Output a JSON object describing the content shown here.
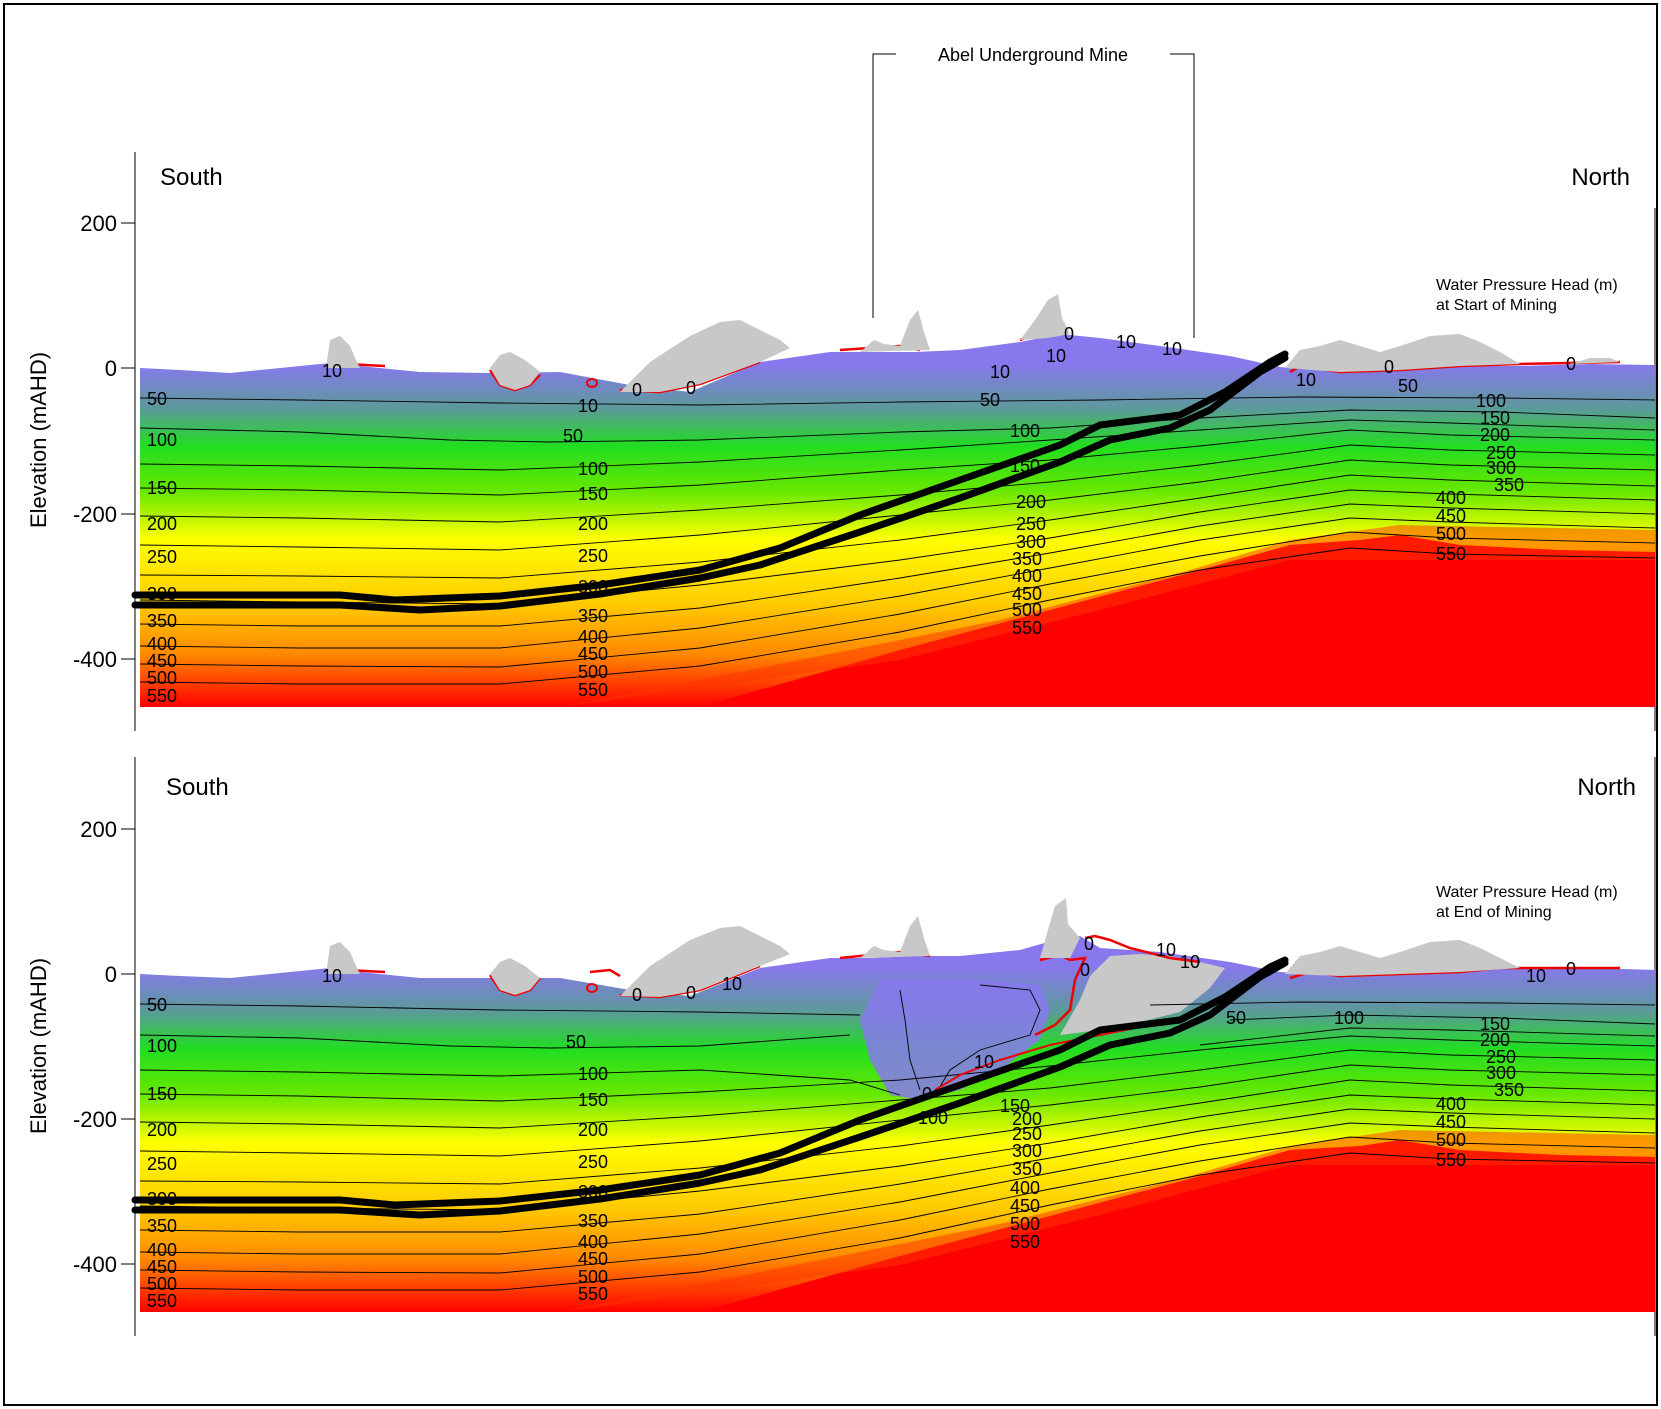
{
  "title_box": {
    "label": "Abel Underground Mine"
  },
  "panels": [
    {
      "south_label": "South",
      "north_label": "North",
      "caption_line1": "Water Pressure Head (m)",
      "caption_line2": "at Start of Mining",
      "ylabel": "Elevation (mAHD)",
      "yticks": [
        "200",
        "0",
        "-200",
        "-400"
      ]
    },
    {
      "south_label": "South",
      "north_label": "North",
      "caption_line1": "Water Pressure Head (m)",
      "caption_line2": "at End of Mining",
      "ylabel": "Elevation (mAHD)",
      "yticks": [
        "200",
        "0",
        "-200",
        "-400"
      ]
    }
  ],
  "chart_data": [
    {
      "type": "contour",
      "panel": "Water Pressure Head (m) at Start of Mining",
      "ylabel": "Elevation (mAHD)",
      "ylim": [
        -490,
        300
      ],
      "yticks": [
        200,
        0,
        -200,
        -400
      ],
      "contour_levels": [
        0,
        10,
        50,
        100,
        150,
        200,
        250,
        300,
        350,
        400,
        450,
        500,
        550
      ],
      "left_edge_labels": [
        "50",
        "100",
        "150",
        "200",
        "250",
        "300",
        "350",
        "400",
        "450",
        "500",
        "550"
      ],
      "mid_section_labels": [
        "10",
        "50",
        "100",
        "150",
        "200",
        "250",
        "300",
        "350",
        "400",
        "450",
        "500",
        "550"
      ],
      "center_labels": [
        "100",
        "150",
        "200",
        "250",
        "300",
        "350",
        "400",
        "450",
        "500",
        "550"
      ],
      "north_labels": [
        "100",
        "150",
        "200",
        "250",
        "300",
        "350",
        "400",
        "450",
        "500",
        "550"
      ],
      "surface_labels": [
        "10",
        "0",
        "0",
        "10",
        "10",
        "0",
        "10",
        "10",
        "50",
        "10",
        "0",
        "50",
        "0"
      ]
    },
    {
      "type": "contour",
      "panel": "Water Pressure Head (m) at End of Mining",
      "ylabel": "Elevation (mAHD)",
      "ylim": [
        -490,
        300
      ],
      "yticks": [
        200,
        0,
        -200,
        -400
      ],
      "contour_levels": [
        0,
        10,
        50,
        100,
        150,
        200,
        250,
        300,
        350,
        400,
        450,
        500,
        550
      ],
      "left_edge_labels": [
        "50",
        "100",
        "150",
        "200",
        "250",
        "300",
        "350",
        "400",
        "450",
        "500",
        "550"
      ],
      "mid_section_labels": [
        "50",
        "100",
        "150",
        "200",
        "250",
        "300",
        "350",
        "400",
        "450",
        "500",
        "550"
      ],
      "center_labels": [
        "150",
        "200",
        "250",
        "300",
        "350",
        "400",
        "450",
        "500",
        "550"
      ],
      "north_labels": [
        "150",
        "200",
        "250",
        "300",
        "350",
        "400",
        "450",
        "500",
        "550"
      ],
      "surface_labels": [
        "10",
        "0",
        "0",
        "0",
        "10",
        "0",
        "10",
        "10",
        "10",
        "50",
        "100",
        "10",
        "0",
        "0",
        "100"
      ]
    }
  ],
  "colors": {
    "surface_water": "#8878ee",
    "green": "#22dd22",
    "yellow": "#ffff00",
    "orange": "#ffaa00",
    "red": "#ff0000",
    "terrain": "#c8c8c8",
    "zero_head_line": "#ee0000",
    "mine_seam": "#000000"
  }
}
